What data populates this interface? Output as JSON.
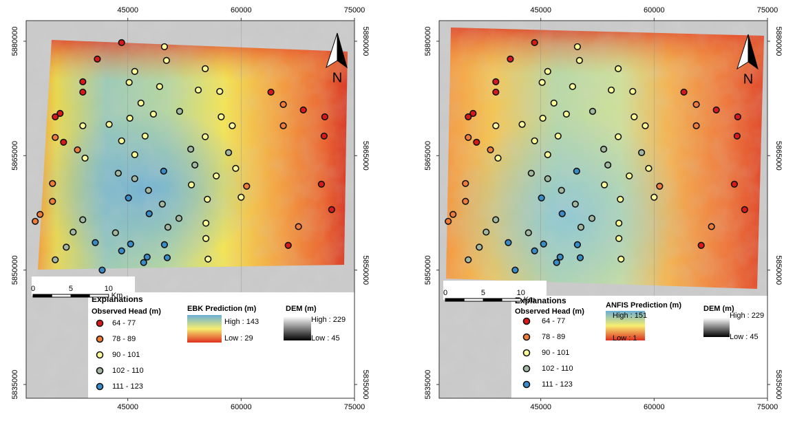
{
  "xlim": [
    31550,
    75000
  ],
  "ylim": [
    5833200,
    5882700
  ],
  "xticks": [
    45000,
    60000,
    75000
  ],
  "yticks": [
    5880000,
    5865000,
    5850000,
    5835000
  ],
  "north": "N",
  "scale_bar": {
    "ticks": [
      0,
      5,
      10
    ],
    "unit": "Km"
  },
  "legend": {
    "title": "Explanations",
    "subtitle": "Observed Head (m)",
    "classes": [
      {
        "label": "64 - 77",
        "color": "#d7191c"
      },
      {
        "label": "78 - 89",
        "color": "#f07c3a"
      },
      {
        "label": "90 - 101",
        "color": "#ffff99"
      },
      {
        "label": "102 - 110",
        "color": "#a3b8a0"
      },
      {
        "label": "111 - 123",
        "color": "#3a8cc8"
      }
    ]
  },
  "dem": {
    "title": "DEM (m)",
    "high": "High : 229",
    "low": "Low : 45"
  },
  "panels": [
    {
      "prediction": {
        "title": "EBK Prediction (m)",
        "high": "High : 143",
        "low": "Low : 29"
      }
    },
    {
      "prediction": {
        "title": "ANFIS Prediction (m)",
        "high": "High : 151",
        "low": "Low : 1"
      }
    }
  ],
  "observations": {
    "x": [
      44180,
      49850,
      40970,
      50120,
      55250,
      45920,
      39050,
      45180,
      49210,
      39050,
      54330,
      57170,
      63940,
      65580,
      68230,
      35400,
      36040,
      46740,
      51860,
      48390,
      45270,
      57360,
      65580,
      71070,
      39050,
      42530,
      58830,
      35400,
      36500,
      44180,
      47290,
      55250,
      70980,
      38340,
      39340,
      45920,
      53330,
      58340,
      43740,
      45920,
      49750,
      53880,
      59280,
      53420,
      56710,
      60730,
      35040,
      70620,
      45090,
      47740,
      55530,
      60000,
      35040,
      33390,
      32750,
      71980,
      39040,
      49570,
      51770,
      47830,
      55340,
      43370,
      50310,
      37770,
      67590,
      36860,
      40700,
      45370,
      49850,
      55340,
      66230,
      35400,
      44180,
      47560,
      50220,
      55620,
      47100,
      41610
    ],
    "y": [
      5879820,
      5879280,
      5877660,
      5877480,
      5876400,
      5876040,
      5874690,
      5874600,
      5874060,
      5873330,
      5873600,
      5873420,
      5873330,
      5871710,
      5870990,
      5870090,
      5870540,
      5871890,
      5870810,
      5870450,
      5869910,
      5870090,
      5868920,
      5870090,
      5868920,
      5869100,
      5868920,
      5867390,
      5866760,
      5866940,
      5867570,
      5867480,
      5867570,
      5865760,
      5864680,
      5865130,
      5865850,
      5865400,
      5862700,
      5861980,
      5862970,
      5863780,
      5863330,
      5861170,
      5862340,
      5860990,
      5861350,
      5861260,
      5859460,
      5860450,
      5859280,
      5859550,
      5859010,
      5857300,
      5856390,
      5857930,
      5856600,
      5858650,
      5856780,
      5857390,
      5856150,
      5854890,
      5855620,
      5854980,
      5855700,
      5853000,
      5853600,
      5853420,
      5853330,
      5854140,
      5853240,
      5851350,
      5852520,
      5851710,
      5851620,
      5851440,
      5850990,
      5850000
    ],
    "class": [
      0,
      2,
      0,
      2,
      2,
      2,
      0,
      2,
      2,
      0,
      2,
      2,
      0,
      1,
      0,
      0,
      0,
      2,
      3,
      2,
      2,
      2,
      1,
      0,
      2,
      2,
      2,
      1,
      0,
      2,
      2,
      2,
      0,
      1,
      2,
      2,
      3,
      3,
      3,
      3,
      4,
      3,
      2,
      2,
      2,
      1,
      1,
      0,
      4,
      3,
      2,
      2,
      1,
      1,
      1,
      0,
      3,
      3,
      3,
      4,
      2,
      3,
      3,
      3,
      1,
      3,
      4,
      4,
      4,
      2,
      0,
      3,
      4,
      4,
      4,
      2,
      4,
      4
    ]
  }
}
